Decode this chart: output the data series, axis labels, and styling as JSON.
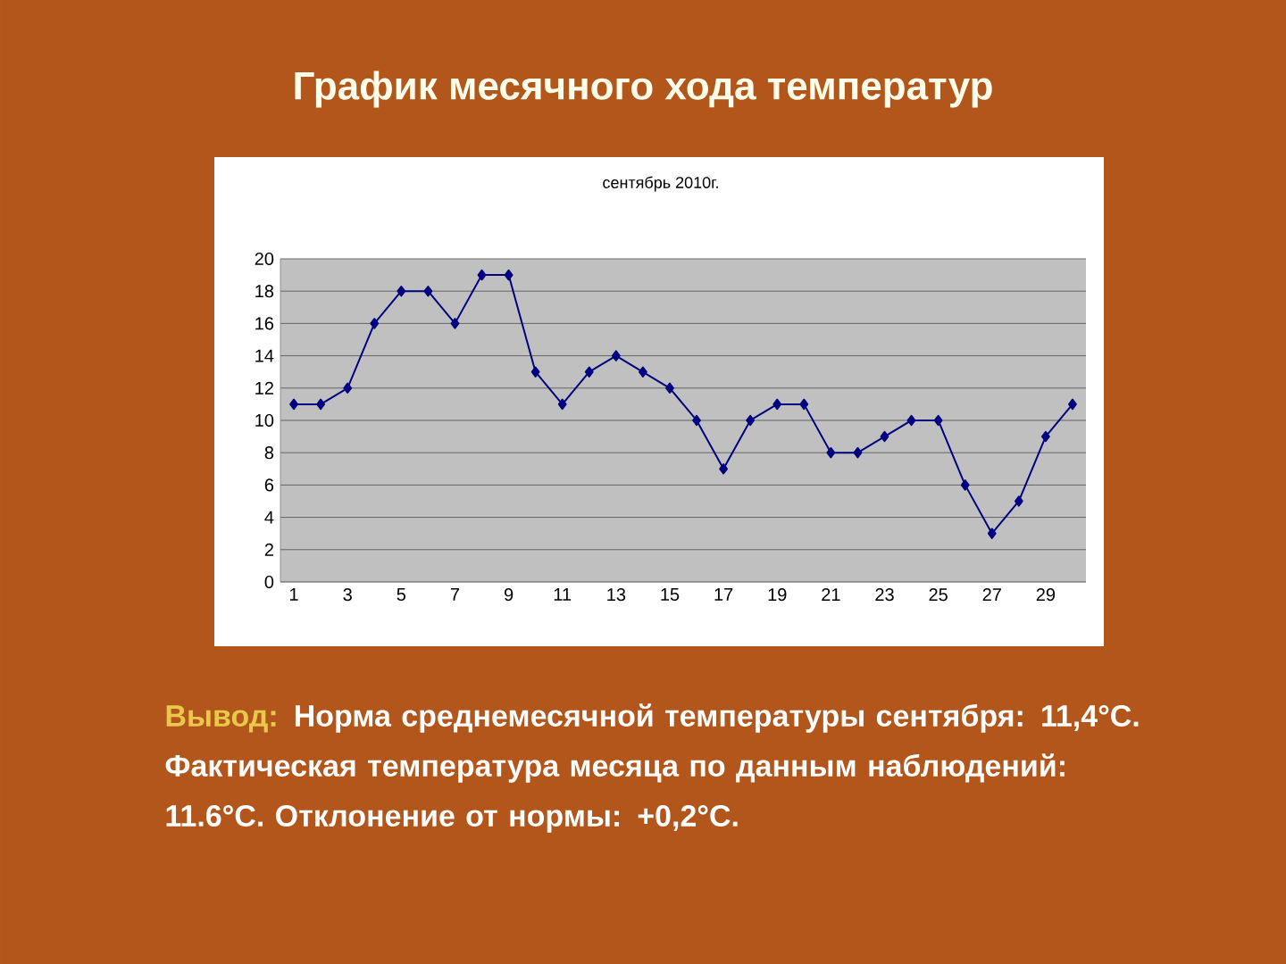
{
  "chart_data": {
    "type": "line",
    "title": "График месячного хода температур",
    "subtitle": "сентябрь 2010г.",
    "categories": [
      "1",
      null,
      "3",
      null,
      "5",
      null,
      "7",
      null,
      "9",
      null,
      "11",
      null,
      "13",
      null,
      "15",
      null,
      "17",
      null,
      "19",
      null,
      "21",
      null,
      "23",
      null,
      "25",
      null,
      "27",
      null,
      "29",
      null
    ],
    "series": [
      {
        "color": "#000080",
        "values": [
          11,
          11,
          12,
          16,
          18,
          18,
          16,
          19,
          19,
          13,
          11,
          13,
          14,
          13,
          12,
          10,
          7,
          10,
          11,
          11,
          8,
          8,
          9,
          10,
          10,
          6,
          3,
          5,
          9,
          11
        ]
      }
    ],
    "ylim": [
      0,
      20
    ],
    "yticks": [
      0,
      2,
      4,
      6,
      8,
      10,
      12,
      14,
      16,
      18,
      20
    ],
    "grid": "y",
    "marker": "diamond",
    "line_style": "solid",
    "annotations": [
      "Вывод:",
      "Норма среднемесячной температуры сентября: 11,4°C. Фактическая температура месяца по данным наблюдений: 11.6°C. Отклонение от нормы: +0,2°C."
    ]
  }
}
